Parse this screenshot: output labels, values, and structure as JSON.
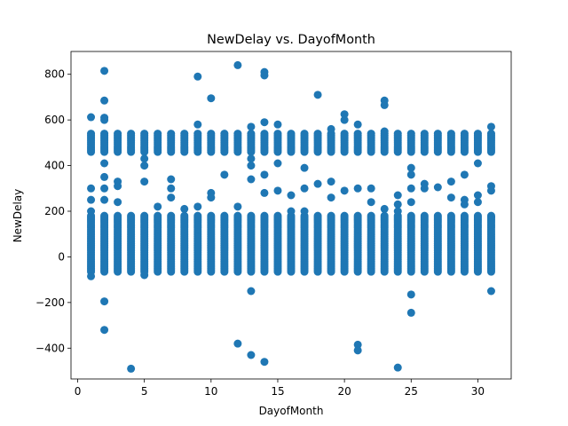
{
  "chart_data": {
    "type": "scatter",
    "title": "NewDelay vs. DayofMonth",
    "xlabel": "DayofMonth",
    "ylabel": "NewDelay",
    "xlim": [
      -0.5,
      32.5
    ],
    "ylim": [
      -535,
      900
    ],
    "xticks": [
      0,
      5,
      10,
      15,
      20,
      25,
      30
    ],
    "yticks": [
      -400,
      -200,
      0,
      200,
      400,
      600,
      800
    ],
    "xtick_labels": [
      "0",
      "5",
      "10",
      "15",
      "20",
      "25",
      "30"
    ],
    "ytick_labels": [
      "−400",
      "−200",
      "0",
      "200",
      "400",
      "600",
      "800"
    ],
    "grid": false,
    "marker_color": "#1f77b4",
    "dense_bands": [
      {
        "y_range": [
          -65,
          180
        ],
        "x_days": [
          1,
          2,
          3,
          4,
          5,
          6,
          7,
          8,
          9,
          10,
          11,
          12,
          13,
          14,
          15,
          16,
          17,
          18,
          19,
          20,
          21,
          22,
          23,
          24,
          25,
          26,
          27,
          28,
          29,
          30,
          31
        ]
      },
      {
        "y_range": [
          460,
          540
        ],
        "x_days": [
          1,
          2,
          3,
          4,
          5,
          6,
          7,
          8,
          9,
          10,
          11,
          12,
          13,
          14,
          15,
          16,
          17,
          18,
          19,
          20,
          21,
          22,
          23,
          24,
          25,
          26,
          27,
          28,
          29,
          30,
          31
        ]
      }
    ],
    "points": [
      [
        1,
        612
      ],
      [
        1,
        300
      ],
      [
        1,
        250
      ],
      [
        1,
        200
      ],
      [
        1,
        -85
      ],
      [
        2,
        815
      ],
      [
        2,
        685
      ],
      [
        2,
        610
      ],
      [
        2,
        600
      ],
      [
        2,
        410
      ],
      [
        2,
        350
      ],
      [
        2,
        300
      ],
      [
        2,
        250
      ],
      [
        2,
        -195
      ],
      [
        2,
        -320
      ],
      [
        3,
        330
      ],
      [
        3,
        310
      ],
      [
        3,
        240
      ],
      [
        4,
        -490
      ],
      [
        5,
        430
      ],
      [
        5,
        400
      ],
      [
        5,
        330
      ],
      [
        5,
        -80
      ],
      [
        6,
        220
      ],
      [
        7,
        340
      ],
      [
        7,
        300
      ],
      [
        7,
        260
      ],
      [
        8,
        210
      ],
      [
        9,
        790
      ],
      [
        9,
        580
      ],
      [
        9,
        220
      ],
      [
        10,
        695
      ],
      [
        10,
        280
      ],
      [
        10,
        260
      ],
      [
        11,
        360
      ],
      [
        12,
        840
      ],
      [
        12,
        220
      ],
      [
        12,
        -380
      ],
      [
        13,
        570
      ],
      [
        13,
        430
      ],
      [
        13,
        400
      ],
      [
        13,
        340
      ],
      [
        13,
        -150
      ],
      [
        13,
        -430
      ],
      [
        14,
        810
      ],
      [
        14,
        795
      ],
      [
        14,
        590
      ],
      [
        14,
        360
      ],
      [
        14,
        280
      ],
      [
        14,
        -460
      ],
      [
        15,
        580
      ],
      [
        15,
        410
      ],
      [
        15,
        290
      ],
      [
        16,
        270
      ],
      [
        16,
        200
      ],
      [
        17,
        390
      ],
      [
        17,
        300
      ],
      [
        17,
        200
      ],
      [
        18,
        710
      ],
      [
        18,
        320
      ],
      [
        19,
        560
      ],
      [
        19,
        330
      ],
      [
        19,
        260
      ],
      [
        20,
        625
      ],
      [
        20,
        600
      ],
      [
        20,
        290
      ],
      [
        21,
        580
      ],
      [
        21,
        300
      ],
      [
        21,
        -385
      ],
      [
        21,
        -410
      ],
      [
        22,
        300
      ],
      [
        22,
        240
      ],
      [
        23,
        685
      ],
      [
        23,
        665
      ],
      [
        23,
        550
      ],
      [
        23,
        210
      ],
      [
        24,
        270
      ],
      [
        24,
        230
      ],
      [
        24,
        200
      ],
      [
        24,
        -485
      ],
      [
        25,
        390
      ],
      [
        25,
        360
      ],
      [
        25,
        300
      ],
      [
        25,
        240
      ],
      [
        25,
        -165
      ],
      [
        25,
        -245
      ],
      [
        26,
        320
      ],
      [
        26,
        300
      ],
      [
        27,
        305
      ],
      [
        28,
        330
      ],
      [
        28,
        260
      ],
      [
        29,
        360
      ],
      [
        29,
        250
      ],
      [
        29,
        230
      ],
      [
        30,
        410
      ],
      [
        30,
        270
      ],
      [
        30,
        240
      ],
      [
        31,
        570
      ],
      [
        31,
        310
      ],
      [
        31,
        290
      ],
      [
        31,
        175
      ],
      [
        31,
        -150
      ]
    ]
  }
}
